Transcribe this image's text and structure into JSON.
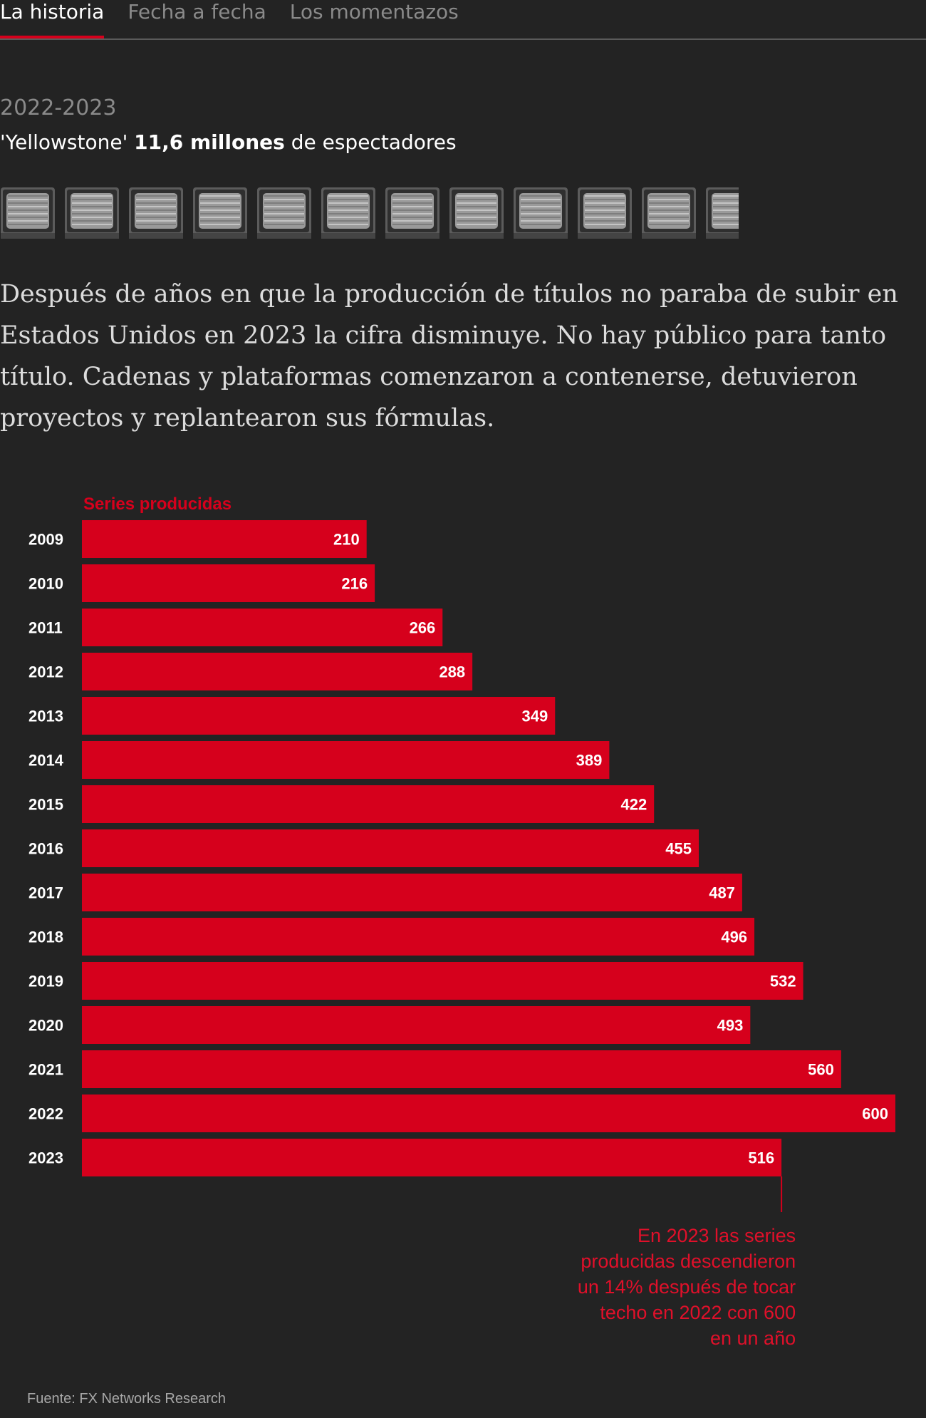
{
  "tabs": [
    {
      "label": "La historia",
      "active": true
    },
    {
      "label": "Fecha a fecha",
      "active": false
    },
    {
      "label": "Los momentazos",
      "active": false
    }
  ],
  "header": {
    "period": "2022-2023",
    "show": "'Yellowstone'",
    "viewers": "11,6 millones",
    "viewers_suffix": "de espectadores",
    "tv_icon_count": 11.6
  },
  "intro_text": "Después de años en que la producción de títulos no paraba de subir en Estados Unidos en 2023 la cifra disminuye. No hay público para tanto título. Cadenas y plataformas comenzaron a contenerse, detuvieron proyectos y replantearon sus fórmulas.",
  "colors": {
    "accent": "#d6001c",
    "background": "#232323",
    "annotation": "#e0102a"
  },
  "chart_data": {
    "type": "bar",
    "orientation": "horizontal",
    "title": "Series producidas",
    "categories": [
      "2009",
      "2010",
      "2011",
      "2012",
      "2013",
      "2014",
      "2015",
      "2016",
      "2017",
      "2018",
      "2019",
      "2020",
      "2021",
      "2022",
      "2023"
    ],
    "values": [
      210,
      216,
      266,
      288,
      349,
      389,
      422,
      455,
      487,
      496,
      532,
      493,
      560,
      600,
      516
    ],
    "xlim": [
      0,
      600
    ],
    "grid": false,
    "annotation": {
      "category": "2023",
      "lines": [
        "En 2023 las series",
        "producidas descendieron",
        "un 14% después de tocar",
        "techo en 2022 con 600",
        "en un año"
      ]
    },
    "source": "Fuente: FX Networks Research"
  }
}
